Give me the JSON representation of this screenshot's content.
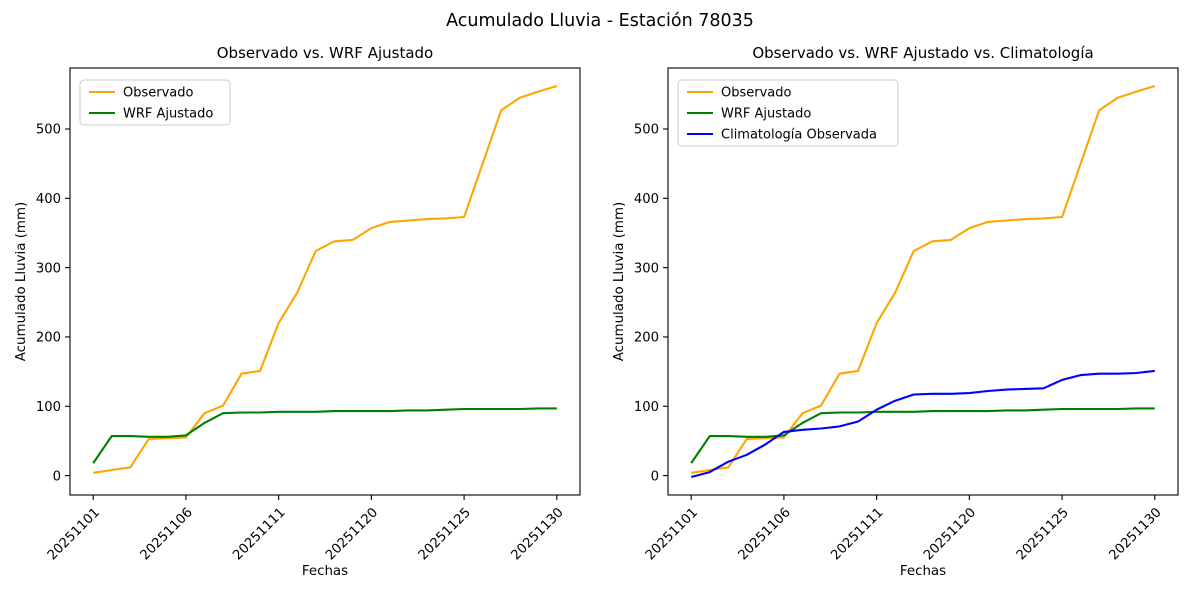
{
  "figure": {
    "suptitle": "Acumulado Lluvia - Estación 78035"
  },
  "chart_data": [
    {
      "type": "line",
      "title": "Observado vs. WRF Ajustado",
      "xlabel": "Fechas",
      "ylabel": "Acumulado Lluvia (mm)",
      "x_ticklabels": [
        "20251101",
        "20251106",
        "20251111",
        "20251120",
        "20251125",
        "20251130"
      ],
      "x_tick_indices": [
        0,
        5,
        10,
        15,
        20,
        25
      ],
      "y_ticks": [
        0,
        100,
        200,
        300,
        400,
        500
      ],
      "ylim": [
        -28,
        588
      ],
      "grid": false,
      "legend_position": "upper left",
      "series": [
        {
          "name": "Observado",
          "color": "#FFA500",
          "values": [
            4,
            8,
            12,
            53,
            54,
            55,
            90,
            101,
            147,
            151,
            220,
            264,
            324,
            338,
            340,
            357,
            366,
            368,
            370,
            371,
            373,
            450,
            527,
            545,
            554,
            562
          ]
        },
        {
          "name": "WRF Ajustado",
          "color": "#008000",
          "values": [
            18,
            57,
            57,
            56,
            56,
            58,
            76,
            90,
            91,
            91,
            92,
            92,
            92,
            93,
            93,
            93,
            93,
            94,
            94,
            95,
            96,
            96,
            96,
            96,
            97,
            97
          ]
        }
      ]
    },
    {
      "type": "line",
      "title": "Observado vs. WRF Ajustado vs. Climatología",
      "xlabel": "Fechas",
      "ylabel": "Acumulado Lluvia (mm)",
      "x_ticklabels": [
        "20251101",
        "20251106",
        "20251111",
        "20251120",
        "20251125",
        "20251130"
      ],
      "x_tick_indices": [
        0,
        5,
        10,
        15,
        20,
        25
      ],
      "y_ticks": [
        0,
        100,
        200,
        300,
        400,
        500
      ],
      "ylim": [
        -28,
        588
      ],
      "grid": false,
      "legend_position": "upper left",
      "series": [
        {
          "name": "Observado",
          "color": "#FFA500",
          "values": [
            4,
            8,
            12,
            53,
            54,
            55,
            90,
            101,
            147,
            151,
            220,
            264,
            324,
            338,
            340,
            357,
            366,
            368,
            370,
            371,
            373,
            450,
            527,
            545,
            554,
            562
          ]
        },
        {
          "name": "WRF Ajustado",
          "color": "#008000",
          "values": [
            18,
            57,
            57,
            56,
            56,
            58,
            76,
            90,
            91,
            91,
            92,
            92,
            92,
            93,
            93,
            93,
            93,
            94,
            94,
            95,
            96,
            96,
            96,
            96,
            97,
            97
          ]
        },
        {
          "name": "Climatología Observada",
          "color": "#0000FF",
          "values": [
            -2,
            5,
            20,
            30,
            45,
            63,
            66,
            68,
            71,
            78,
            95,
            108,
            117,
            118,
            118,
            119,
            122,
            124,
            125,
            126,
            138,
            145,
            147,
            147,
            148,
            151
          ]
        }
      ]
    }
  ]
}
